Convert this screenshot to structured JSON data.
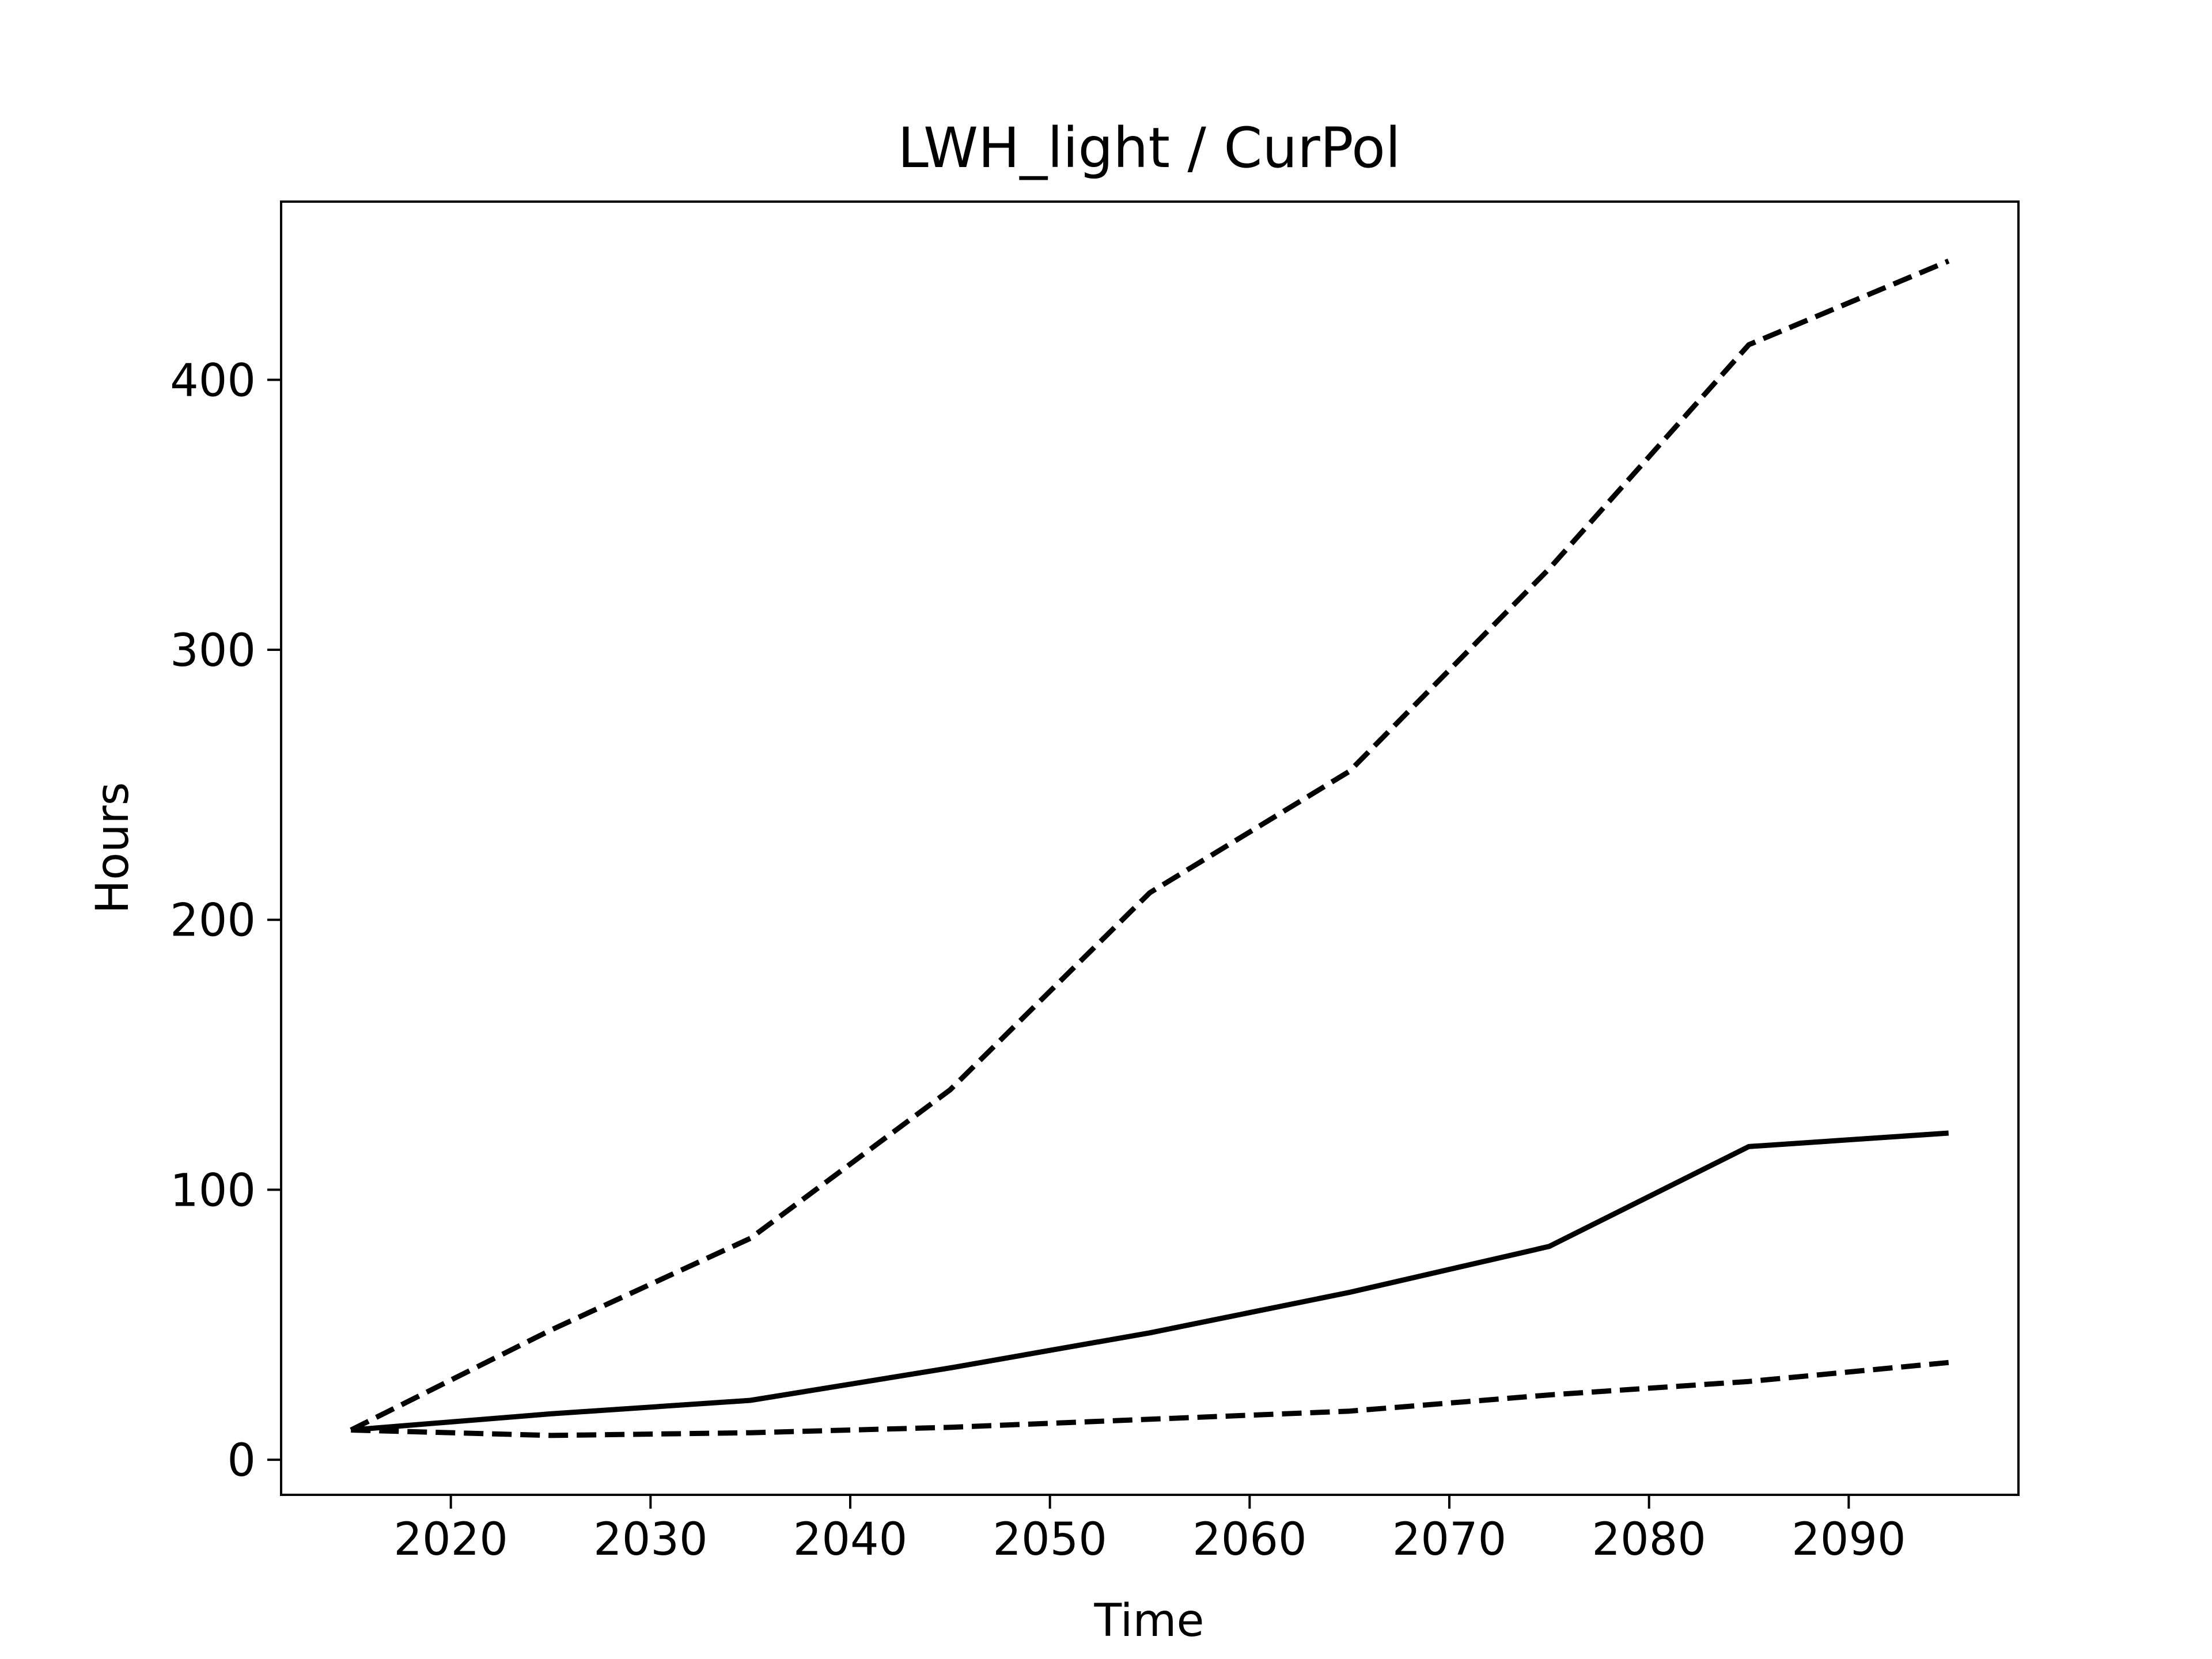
{
  "chart_data": {
    "type": "line",
    "title": "LWH_light / CurPol",
    "xlabel": "Time",
    "ylabel": "Hours",
    "xlim": [
      2011.5,
      2098.5
    ],
    "ylim": [
      -13,
      466
    ],
    "x_ticks": [
      2020,
      2030,
      2040,
      2050,
      2060,
      2070,
      2080,
      2090
    ],
    "y_ticks": [
      0,
      100,
      200,
      300,
      400
    ],
    "grid": false,
    "legend": "none",
    "x": [
      2015,
      2025,
      2035,
      2045,
      2055,
      2065,
      2075,
      2085,
      2095
    ],
    "series": [
      {
        "style": "solid",
        "color": "#000000",
        "values": [
          11,
          17,
          22,
          34,
          47,
          62,
          79,
          116,
          121
        ]
      },
      {
        "style": "dashed",
        "color": "#000000",
        "values": [
          11,
          48,
          82,
          137,
          210,
          255,
          330,
          413,
          444
        ]
      },
      {
        "style": "dashed",
        "color": "#000000",
        "values": [
          11,
          9,
          10,
          12,
          15,
          18,
          24,
          29,
          36
        ]
      }
    ]
  }
}
